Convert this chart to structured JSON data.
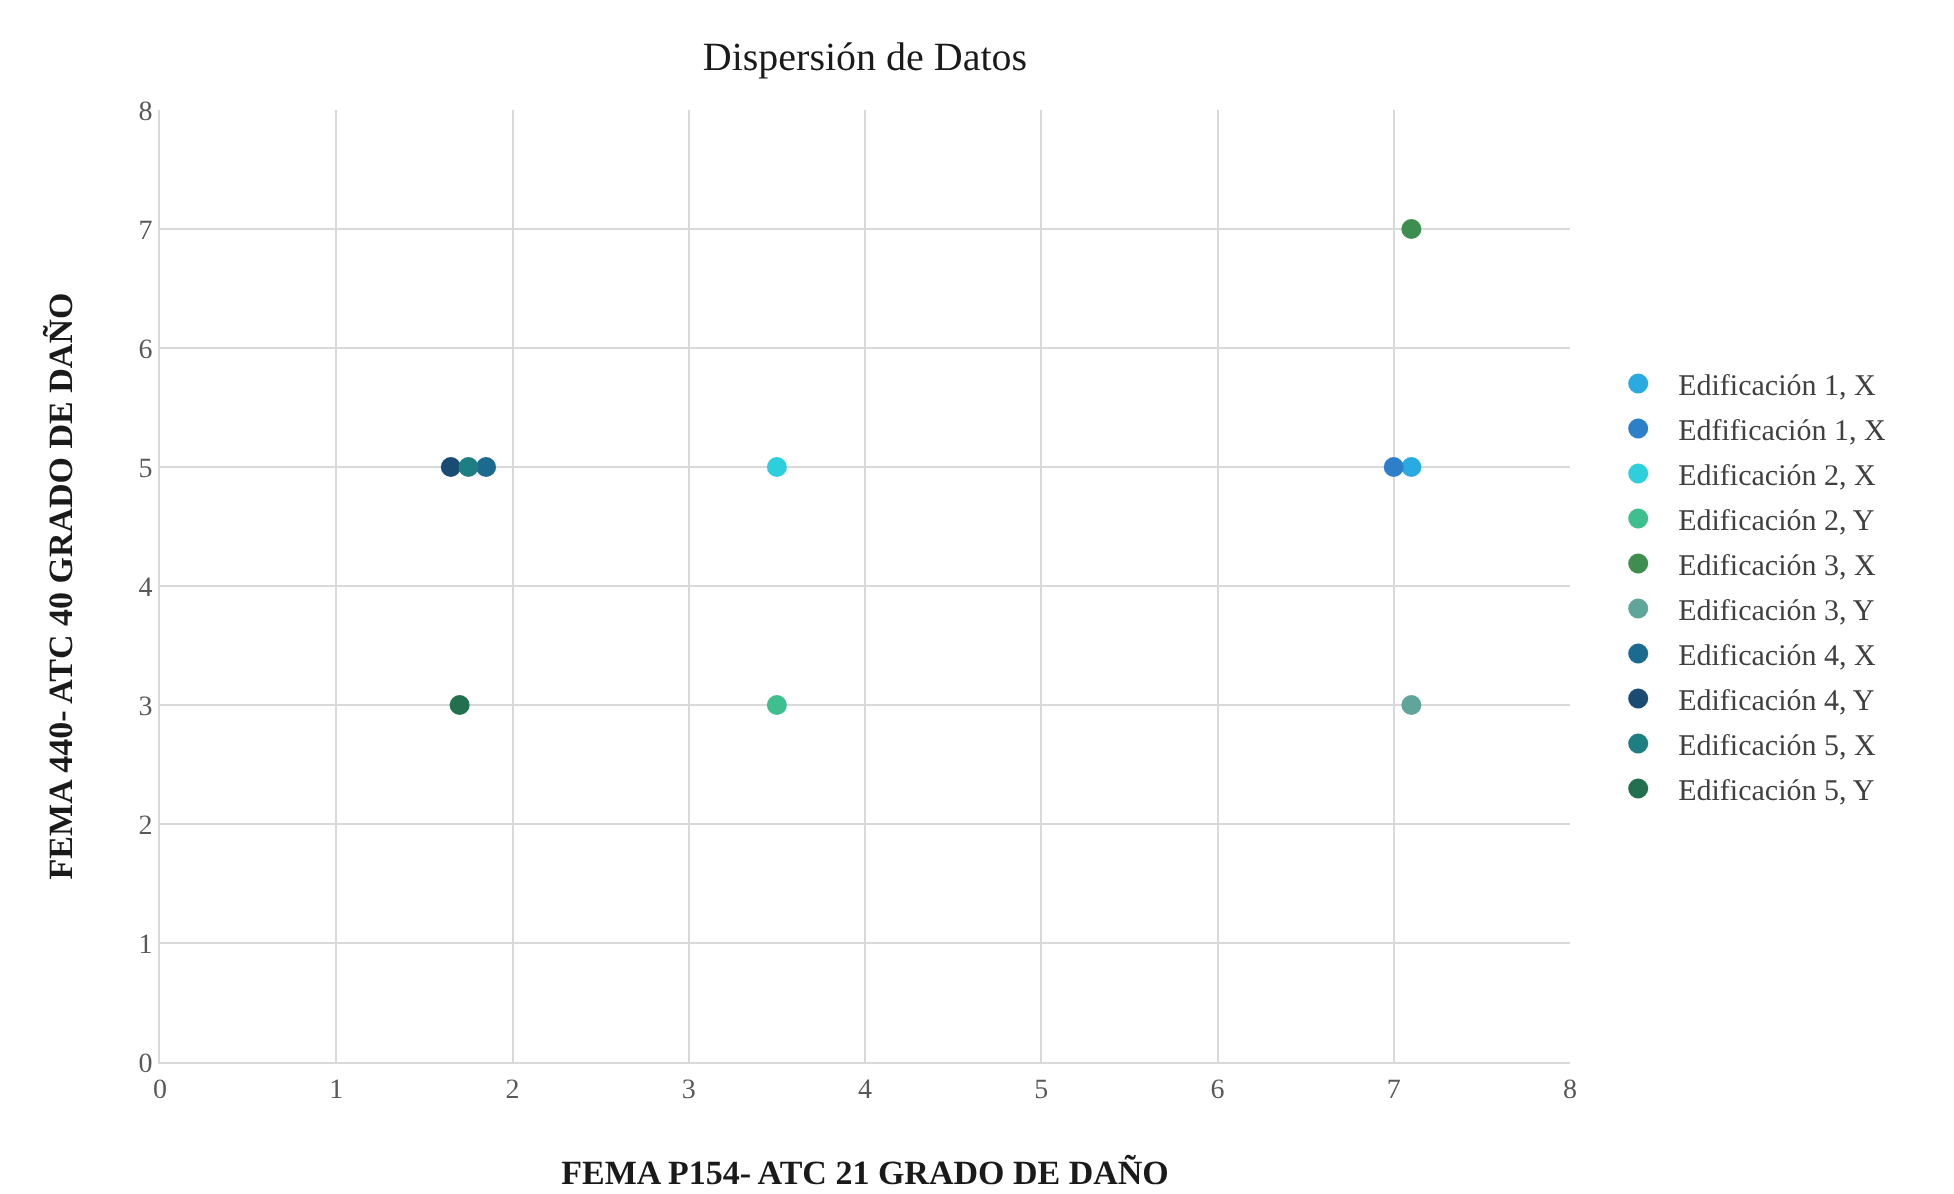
{
  "chart_data": {
    "type": "scatter",
    "title": "Dispersión de Datos",
    "xlabel": "FEMA P154- ATC 21 GRADO DE DAÑO",
    "ylabel": "FEMA 440- ATC 40 GRADO DE DAÑO",
    "xlim": [
      0,
      8
    ],
    "xticks": [
      0,
      1,
      2,
      3,
      4,
      5,
      6,
      7,
      8
    ],
    "ylim": [
      0,
      8
    ],
    "yticks": [
      0,
      1,
      2,
      3,
      4,
      5,
      6,
      7,
      8
    ],
    "grid": true,
    "legend": "right",
    "marker": "circle",
    "series": [
      {
        "name": "Edificación 1, X",
        "color": "#29abe2",
        "x": [
          7.1
        ],
        "values": [
          5
        ]
      },
      {
        "name": "Edfificación 1, X",
        "color": "#2e7fc9",
        "x": [
          7.0
        ],
        "values": [
          5
        ]
      },
      {
        "name": "Edificación 2, X",
        "color": "#2dcfdc",
        "x": [
          3.5
        ],
        "values": [
          5
        ]
      },
      {
        "name": "Edificación 2, Y",
        "color": "#3fbf8f",
        "x": [
          3.5
        ],
        "values": [
          3
        ]
      },
      {
        "name": "Edificación 3, X",
        "color": "#3e8f4f",
        "x": [
          7.1
        ],
        "values": [
          7
        ]
      },
      {
        "name": "Edificación 3, Y",
        "color": "#5fa59a",
        "x": [
          7.1
        ],
        "values": [
          3
        ]
      },
      {
        "name": "Edificación 4, X",
        "color": "#1b6a8f",
        "x": [
          1.85
        ],
        "values": [
          5
        ]
      },
      {
        "name": "Edificación 4, Y",
        "color": "#1a4b73",
        "x": [
          1.65
        ],
        "values": [
          5
        ]
      },
      {
        "name": "Edificación 5, X",
        "color": "#1e7f82",
        "x": [
          1.75
        ],
        "values": [
          5
        ]
      },
      {
        "name": "Edificación 5, Y",
        "color": "#23704f",
        "x": [
          1.7
        ],
        "values": [
          3
        ]
      }
    ]
  }
}
